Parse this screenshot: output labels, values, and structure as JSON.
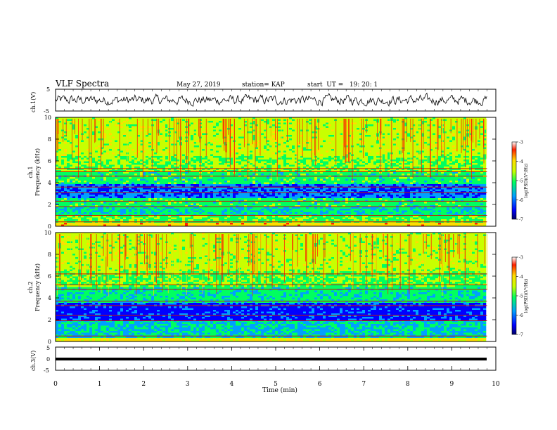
{
  "header": {
    "title": "VLF Spectra",
    "date": "May 27, 2019",
    "station": "station= KAP",
    "start": "start  UT =   19: 20: 1"
  },
  "colors": {
    "scale": [
      "#000066",
      "#0000ff",
      "#00a0ff",
      "#00ff60",
      "#c8ff00",
      "#ffdd00",
      "#ff2000",
      "#ffffff"
    ],
    "trace": "#000000"
  },
  "chart_data": [
    {
      "type": "line",
      "name": "ch1-voltage",
      "ylabel": "ch.1(V)",
      "ylim": [
        -5,
        5
      ],
      "yticks": [
        "5",
        "-5"
      ],
      "x_range_min": [
        0,
        10
      ],
      "trace_extent_min": 9.8,
      "description_values": "noisy waveform fluctuating roughly between -3 and +3 V"
    },
    {
      "type": "heatmap",
      "name": "ch1-spectrogram",
      "ylabel_line1": "ch.1",
      "ylabel_line2": "Frequency (kHz)",
      "ylim": [
        0,
        10
      ],
      "yticks": [
        "0",
        "2",
        "4",
        "6",
        "8",
        "10"
      ],
      "colorbar": {
        "label": "log(PSD)(V²/Hz)",
        "ticks": [
          "-3",
          "-4",
          "-5",
          "-6",
          "-7"
        ],
        "range": [
          -7,
          -3
        ]
      },
      "bands_khz": [
        0.4,
        1.0,
        1.8,
        2.3,
        3.1,
        3.6,
        4.6,
        5.0,
        5.3
      ]
    },
    {
      "type": "heatmap",
      "name": "ch2-spectrogram",
      "ylabel_line1": "ch.2",
      "ylabel_line2": "Frequency (kHz)",
      "ylim": [
        0,
        10
      ],
      "yticks": [
        "0",
        "2",
        "4",
        "6",
        "8",
        "10"
      ],
      "colorbar": {
        "label": "log(PSD)(V²/Hz)",
        "ticks": [
          "-3",
          "-4",
          "-5",
          "-6",
          "-7"
        ],
        "range": [
          -7,
          -3
        ]
      },
      "bands_khz": [
        0.5,
        1.9,
        2.4,
        3.3,
        3.7,
        4.8,
        5.2,
        6.2
      ]
    },
    {
      "type": "line",
      "name": "ch3-voltage",
      "ylabel": "ch.3(V)",
      "ylim": [
        -5,
        5
      ],
      "yticks": [
        "5",
        "0",
        "-5"
      ],
      "constant_value": 0,
      "trace_extent_min": 9.8
    }
  ],
  "xaxis": {
    "label": "Time (min)",
    "ticks": [
      "0",
      "1",
      "2",
      "3",
      "4",
      "5",
      "6",
      "7",
      "8",
      "9",
      "10"
    ],
    "range": [
      0,
      10
    ]
  }
}
